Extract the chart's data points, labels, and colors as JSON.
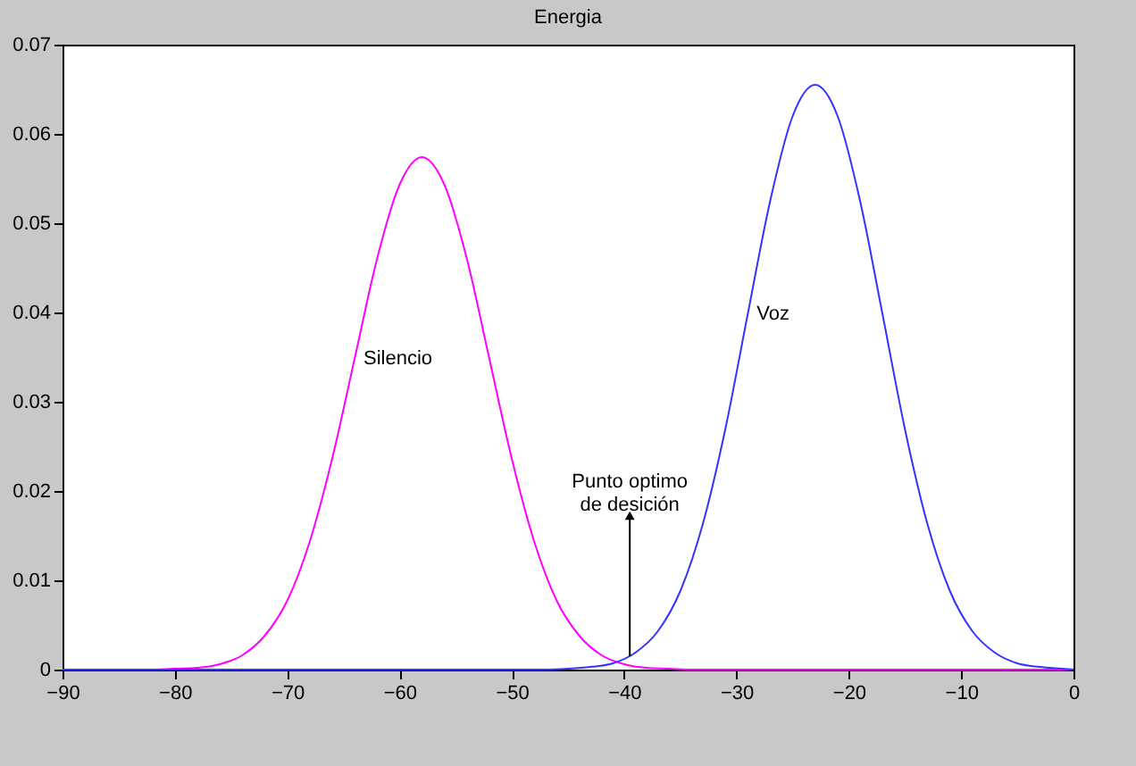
{
  "chart_data": {
    "type": "line",
    "title": "Energia",
    "x": [
      -90,
      -82,
      -80,
      -78,
      -76,
      -74,
      -72,
      -70,
      -68,
      -66,
      -64,
      -62,
      -60,
      -58,
      -56,
      -54,
      -52,
      -50,
      -48,
      -46,
      -44,
      -42,
      -40,
      -38,
      -36,
      -34,
      0
    ],
    "series": [
      {
        "name": "Silencio",
        "color": "#ff00ff",
        "values": [
          0,
          0,
          0.0001,
          0.0002,
          0.0006,
          0.0016,
          0.0038,
          0.0077,
          0.0143,
          0.0236,
          0.0348,
          0.046,
          0.0543,
          0.0574,
          0.0543,
          0.046,
          0.0348,
          0.0236,
          0.0143,
          0.0077,
          0.0038,
          0.0016,
          0.0006,
          0.0002,
          0.0001,
          0,
          0
        ]
      },
      {
        "name": "Voz",
        "color": "#3333ff",
        "x": [
          -90,
          -47,
          -45,
          -43,
          -41,
          -39,
          -37,
          -35,
          -33,
          -31,
          -29,
          -27,
          -25,
          -23,
          -21,
          -19,
          -17,
          -15,
          -13,
          -11,
          -9,
          -7,
          -5,
          -3,
          -1,
          0
        ],
        "values": [
          0,
          0,
          0.0001,
          0.0003,
          0.0007,
          0.0019,
          0.0043,
          0.0088,
          0.0163,
          0.0269,
          0.0398,
          0.0525,
          0.062,
          0.0655,
          0.062,
          0.0525,
          0.0398,
          0.0269,
          0.0163,
          0.0088,
          0.0043,
          0.0019,
          0.0007,
          0.0003,
          0.0001,
          0
        ]
      }
    ],
    "annotations": [
      {
        "text": "Punto optimo\nde desición",
        "x": -39.5,
        "y": 0.0015
      }
    ],
    "xlim": [
      -90,
      0
    ],
    "xticks": [
      -90,
      -80,
      -70,
      -60,
      -50,
      -40,
      -30,
      -20,
      -10,
      0
    ],
    "ylim": [
      0,
      0.07
    ],
    "yticks": [
      0,
      0.01,
      0.02,
      0.03,
      0.04,
      0.05,
      0.06,
      0.07
    ],
    "grid": false,
    "legend": false,
    "marker": "none",
    "line_style": "solid"
  }
}
